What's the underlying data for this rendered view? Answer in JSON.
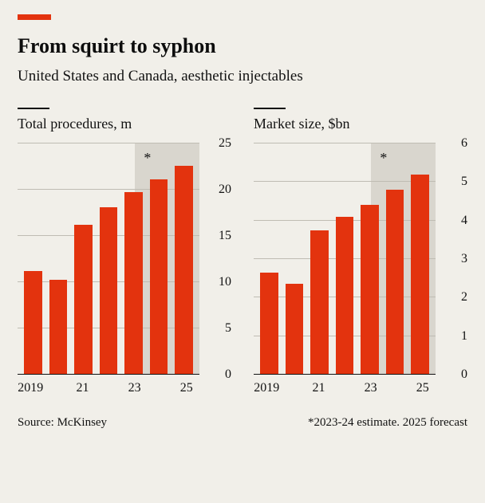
{
  "accent_color": "#e3330e",
  "grid_color": "#bfbcb3",
  "bg_color": "#f1efe9",
  "shade_color": "#d9d6ce",
  "title": "From squirt to syphon",
  "subtitle": "United States and Canada, aesthetic injectables",
  "source": "Source: McKinsey",
  "footnote": "*2023-24 estimate. 2025 forecast",
  "panels": [
    {
      "title": "Total procedures, m",
      "type": "bar",
      "ylim": [
        0,
        25
      ],
      "ytick_step": 5,
      "yticks": [
        0,
        5,
        10,
        15,
        20,
        25
      ],
      "categories": [
        "2019",
        "20",
        "21",
        "22",
        "23",
        "24",
        "25"
      ],
      "xtick_labels": [
        "2019",
        "",
        "21",
        "",
        "23",
        "",
        "25"
      ],
      "values": [
        11.2,
        10.3,
        16.2,
        18.1,
        19.7,
        21.1,
        22.6
      ],
      "shade_from_index": 5,
      "star_at_index": 5
    },
    {
      "title": "Market size, $bn",
      "type": "bar",
      "ylim": [
        0,
        6
      ],
      "ytick_step": 1,
      "yticks": [
        0,
        1,
        2,
        3,
        4,
        5,
        6
      ],
      "categories": [
        "2019",
        "20",
        "21",
        "22",
        "23",
        "24",
        "25"
      ],
      "xtick_labels": [
        "2019",
        "",
        "21",
        "",
        "23",
        "",
        "25"
      ],
      "values": [
        2.65,
        2.35,
        3.75,
        4.1,
        4.4,
        4.8,
        5.2
      ],
      "shade_from_index": 5,
      "star_at_index": 5
    }
  ]
}
